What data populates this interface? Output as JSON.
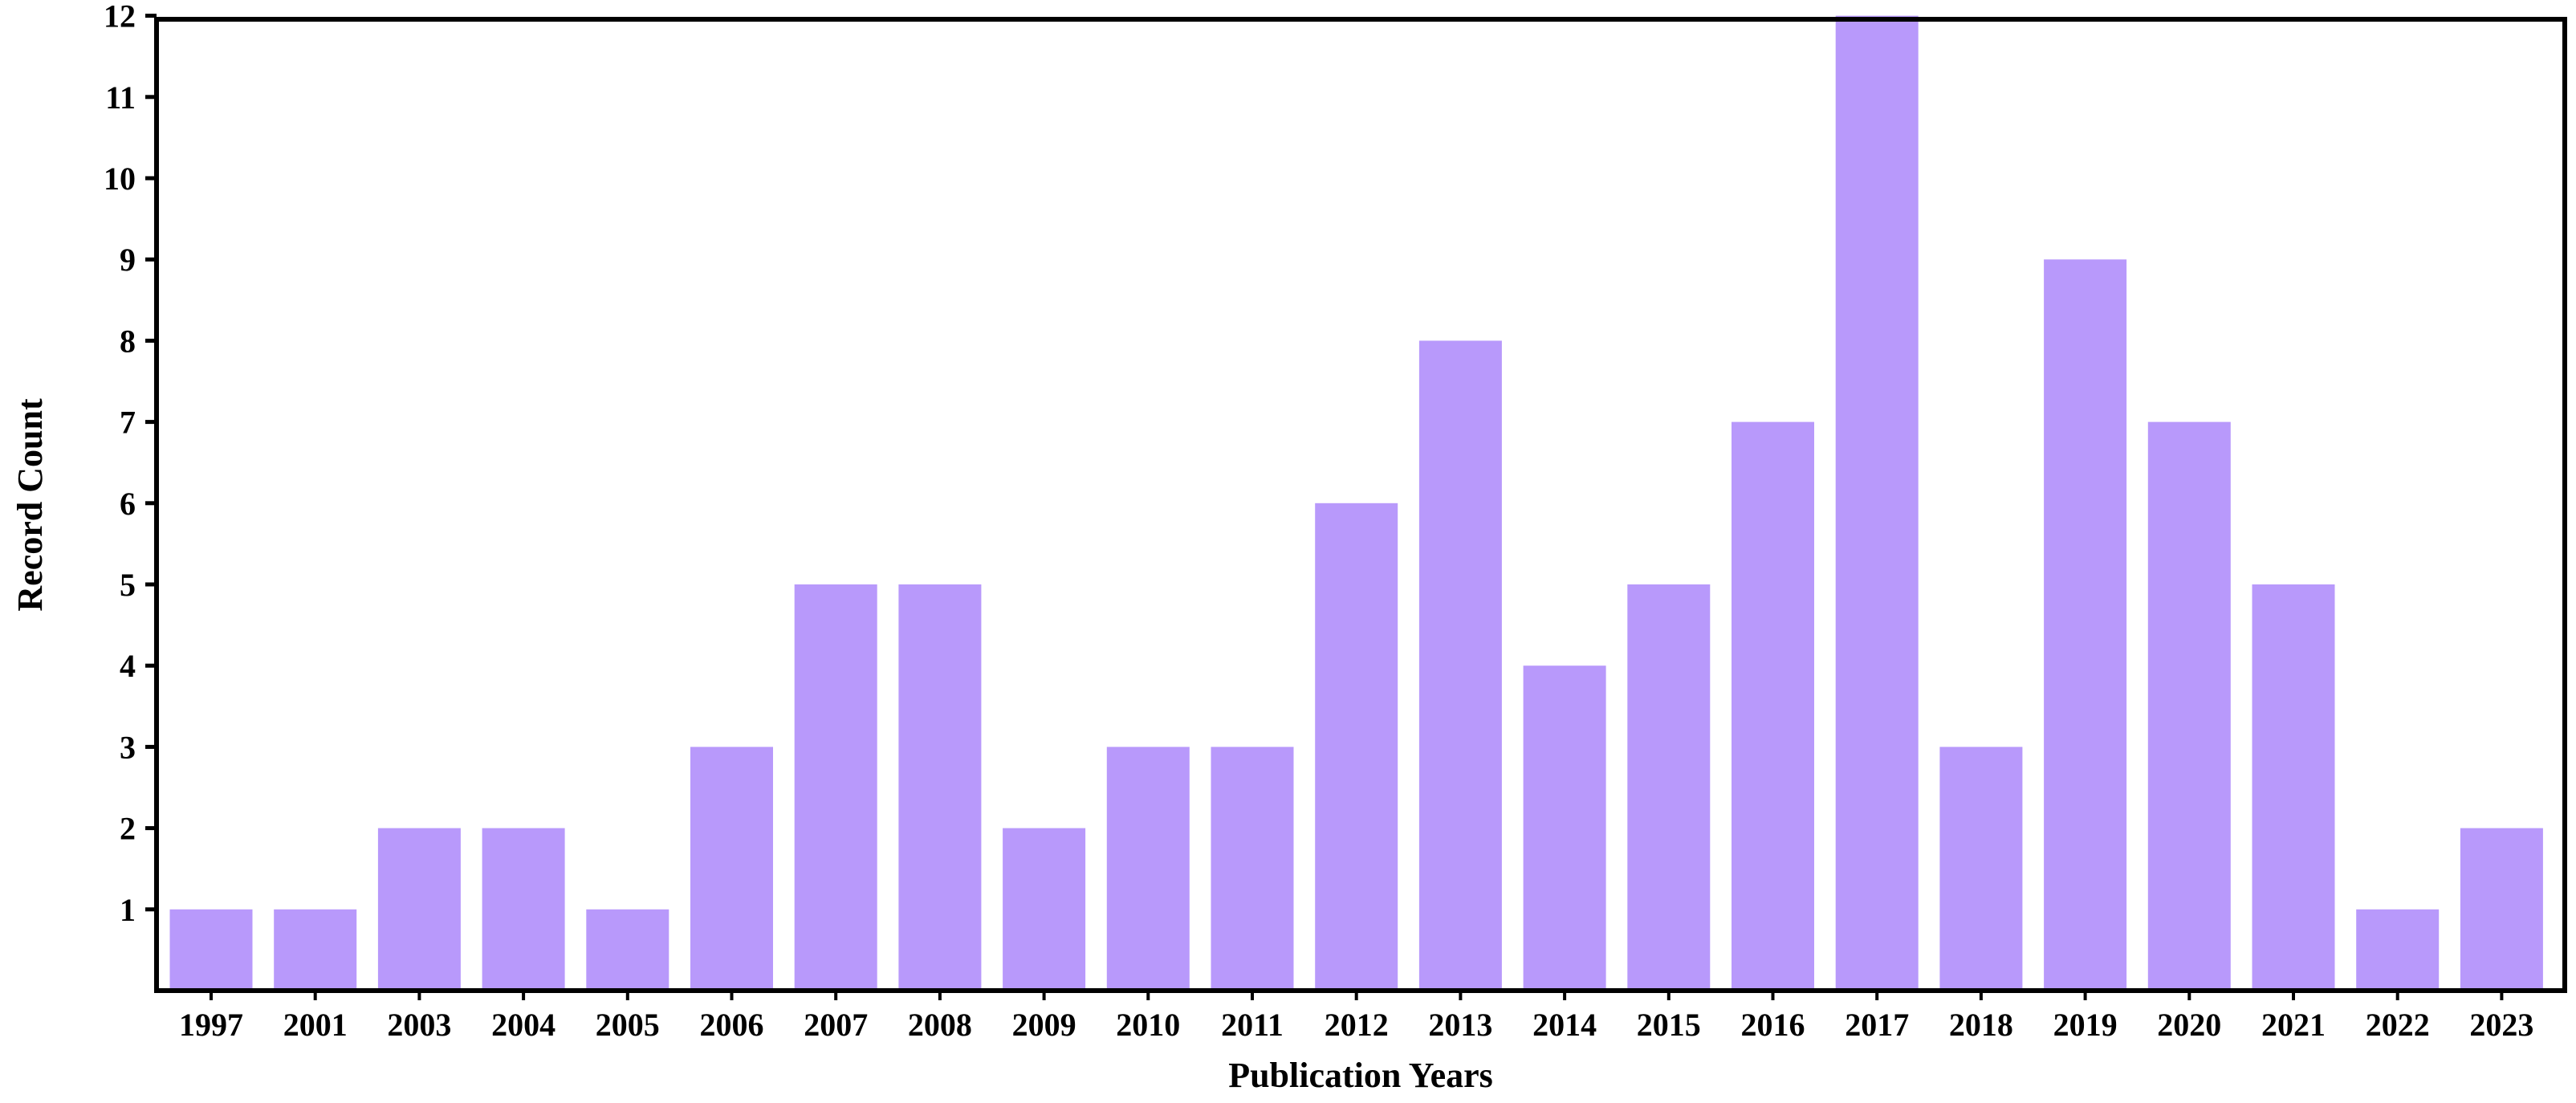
{
  "chart_data": {
    "type": "bar",
    "title": "",
    "xlabel": "Publication Years",
    "ylabel": "Record Count",
    "categories": [
      "1997",
      "2001",
      "2003",
      "2004",
      "2005",
      "2006",
      "2007",
      "2008",
      "2009",
      "2010",
      "2011",
      "2012",
      "2013",
      "2014",
      "2015",
      "2016",
      "2017",
      "2018",
      "2019",
      "2020",
      "2021",
      "2022",
      "2023"
    ],
    "values": [
      1,
      1,
      2,
      2,
      1,
      3,
      5,
      5,
      2,
      3,
      3,
      6,
      8,
      4,
      5,
      7,
      12,
      3,
      9,
      7,
      5,
      1,
      2
    ],
    "yticks": [
      "1",
      "2",
      "3",
      "4",
      "5",
      "6",
      "7",
      "8",
      "9",
      "10",
      "11",
      "12"
    ],
    "ylim": [
      0,
      12
    ],
    "grid": false,
    "legend": "none",
    "bar_color": "#b899fb",
    "axis_color": "#000000"
  }
}
